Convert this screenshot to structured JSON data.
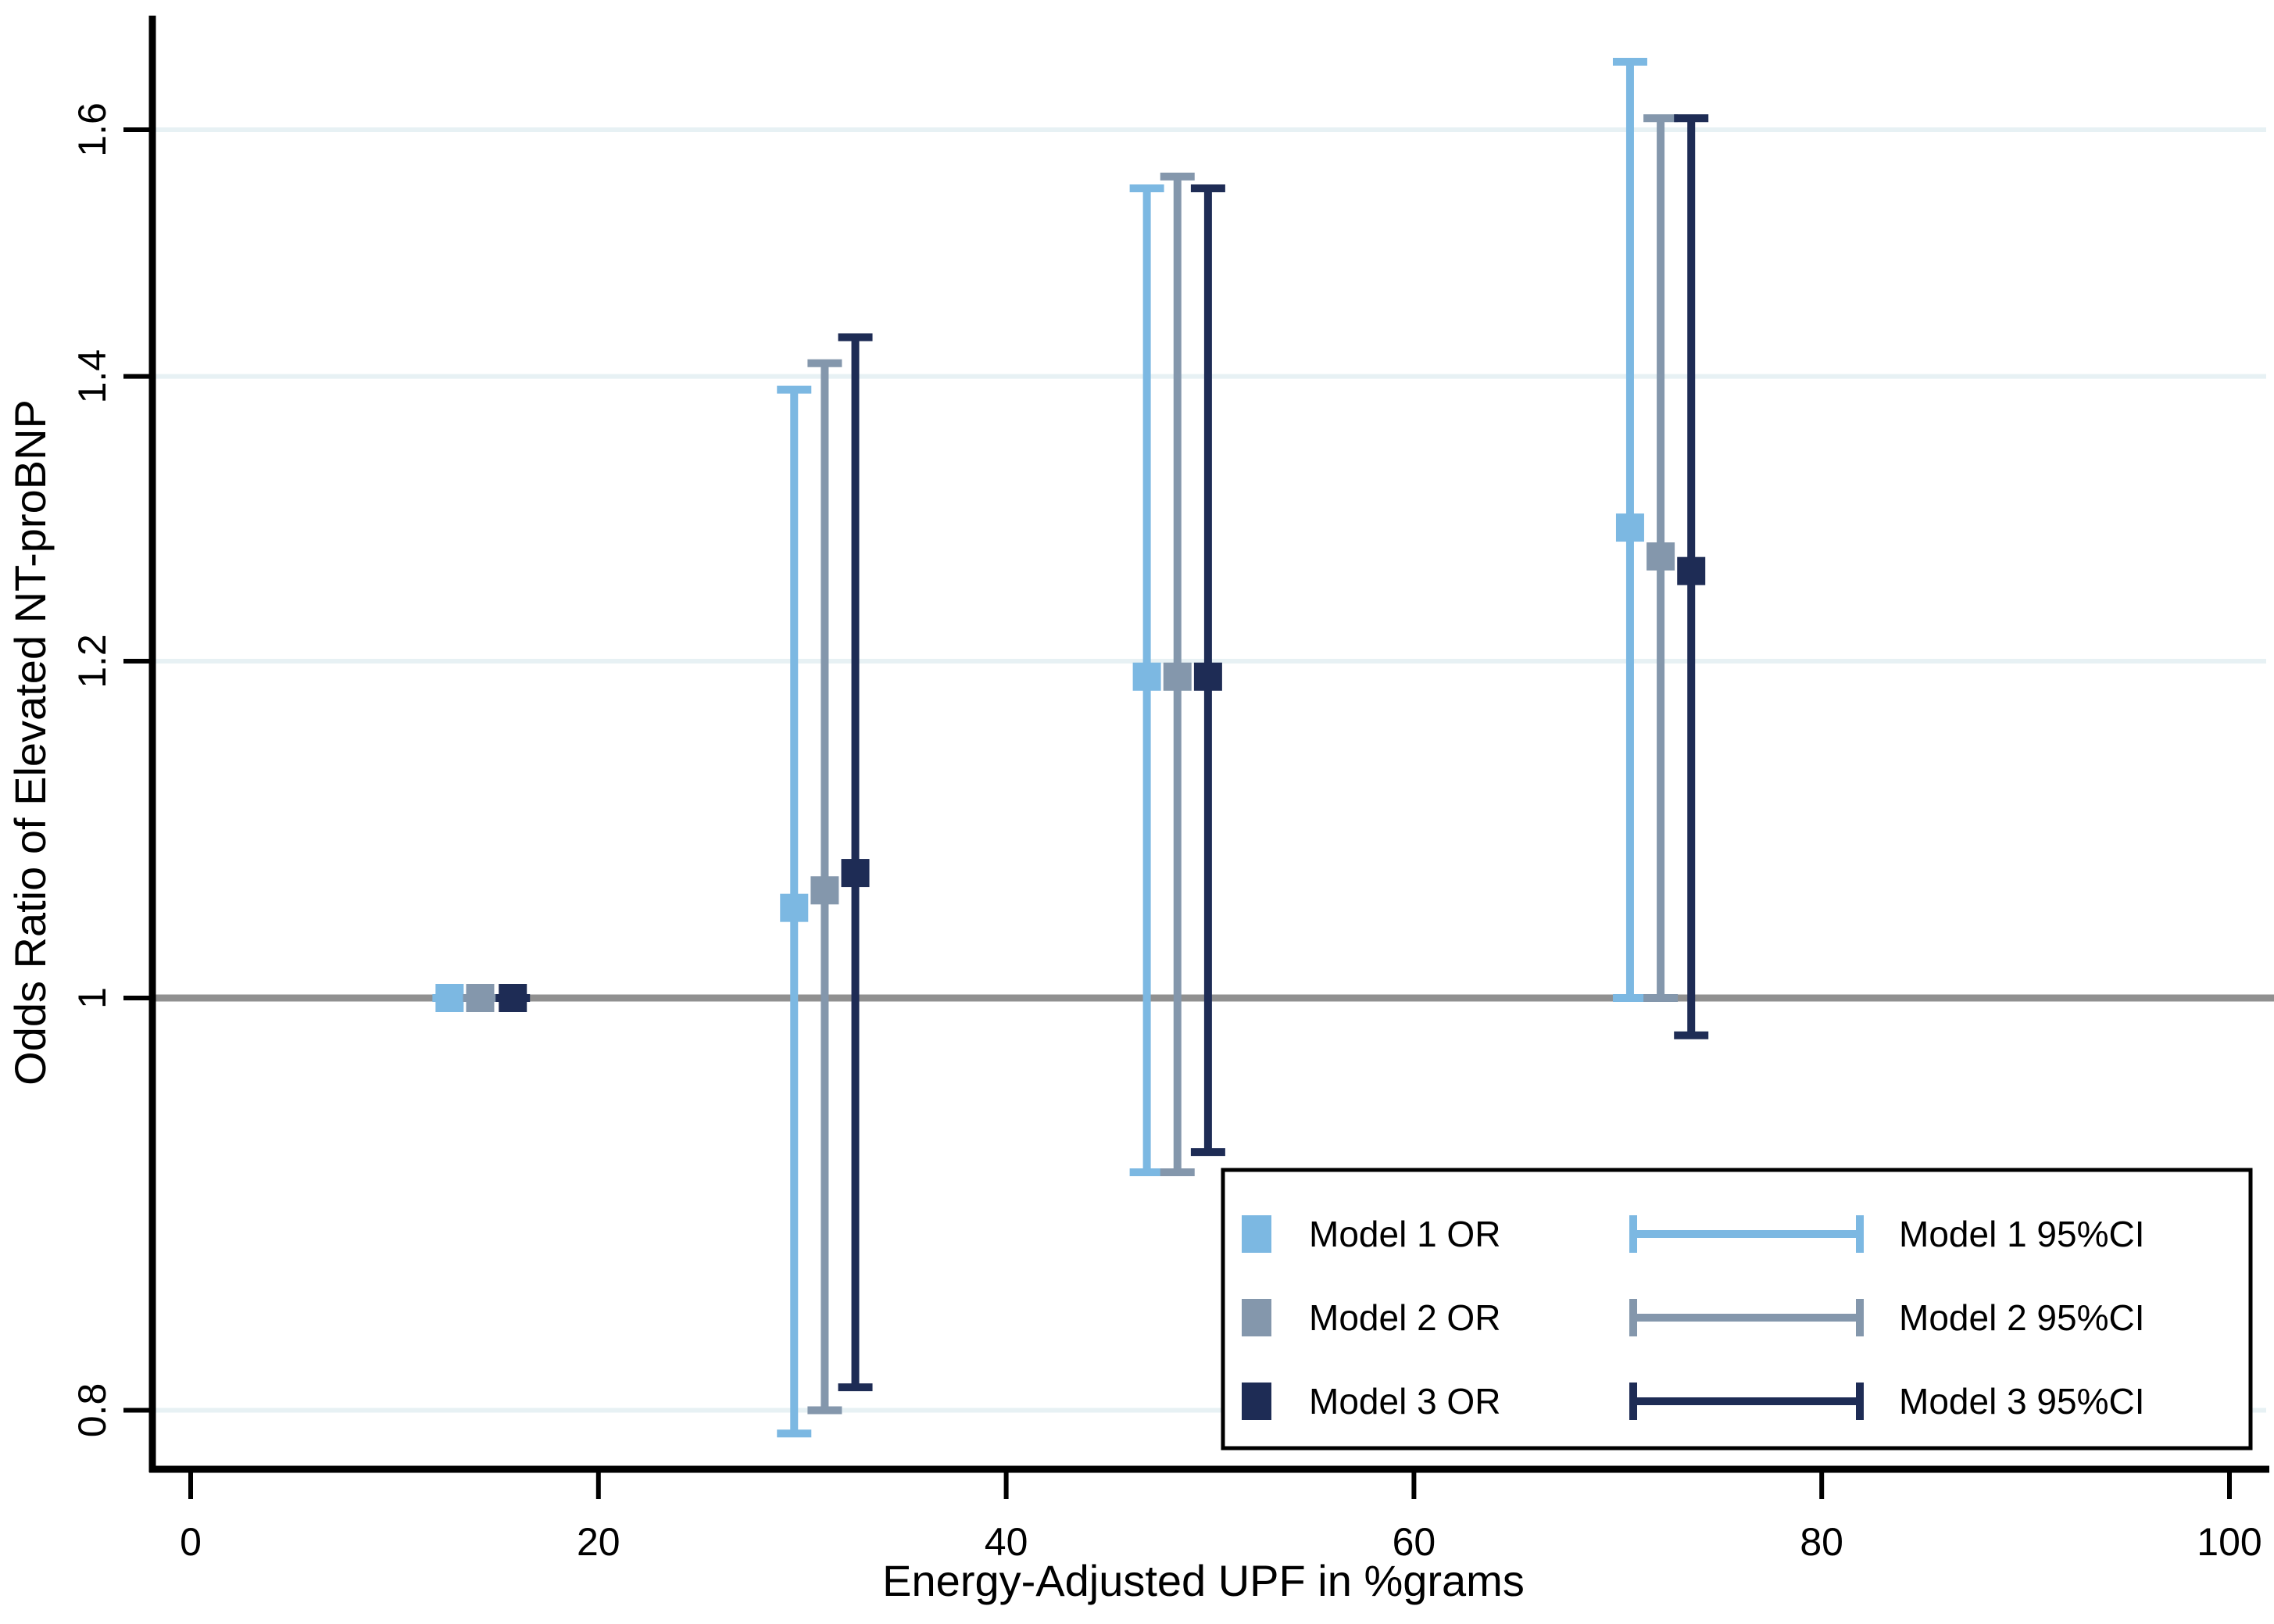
{
  "chart_data": {
    "type": "scatter",
    "subtype": "forest-errorbar",
    "title": "",
    "xlabel": "Energy-Adjusted UPF in %grams",
    "ylabel": "Odds Ratio of Elevated NT-proBNP",
    "x_ticks": [
      0,
      20,
      40,
      60,
      80,
      100
    ],
    "x_tick_labels": [
      "0",
      "20",
      "40",
      "60",
      "80",
      "100"
    ],
    "y_ticks": [
      0.8,
      1,
      1.2,
      1.4,
      1.6
    ],
    "y_tick_labels": [
      "0.8",
      "1",
      "1.2",
      "1.4",
      "1.6"
    ],
    "y_scale": "log",
    "xlim": [
      -1.9,
      102.0
    ],
    "ylim": [
      0.775,
      1.7
    ],
    "reference_line_y": 1,
    "grid": "horizontal-light",
    "gridline_ticks": [
      0.8,
      1.2,
      1.4,
      1.6
    ],
    "legend_position": "bottom-right",
    "series": [
      {
        "name": "Model 1",
        "or_label": "Model 1 OR",
        "ci_label": "Model 1 95%CI",
        "color": "#7CB8E2",
        "points": [
          {
            "x": 12.7,
            "or": 1.0,
            "lo": 1.0,
            "hi": 1.0
          },
          {
            "x": 29.6,
            "or": 1.05,
            "lo": 0.79,
            "hi": 1.39
          },
          {
            "x": 46.9,
            "or": 1.19,
            "lo": 0.91,
            "hi": 1.55
          },
          {
            "x": 70.6,
            "or": 1.29,
            "lo": 1.0,
            "hi": 1.66
          }
        ]
      },
      {
        "name": "Model 2",
        "or_label": "Model 2 OR",
        "ci_label": "Model 2 95%CI",
        "color": "#8497AC",
        "points": [
          {
            "x": 14.2,
            "or": 1.0,
            "lo": 1.0,
            "hi": 1.0
          },
          {
            "x": 31.1,
            "or": 1.06,
            "lo": 0.8,
            "hi": 1.41
          },
          {
            "x": 48.4,
            "or": 1.19,
            "lo": 0.91,
            "hi": 1.56
          },
          {
            "x": 72.1,
            "or": 1.27,
            "lo": 1.0,
            "hi": 1.61
          }
        ]
      },
      {
        "name": "Model 3",
        "or_label": "Model 3 OR",
        "ci_label": "Model 3 95%CI",
        "color": "#1E2C55",
        "points": [
          {
            "x": 15.8,
            "or": 1.0,
            "lo": 1.0,
            "hi": 1.0
          },
          {
            "x": 32.6,
            "or": 1.07,
            "lo": 0.81,
            "hi": 1.43
          },
          {
            "x": 49.9,
            "or": 1.19,
            "lo": 0.92,
            "hi": 1.55
          },
          {
            "x": 73.6,
            "or": 1.26,
            "lo": 0.98,
            "hi": 1.61
          }
        ]
      }
    ],
    "colors": {
      "background": "#FFFFFF",
      "axis": "#000000",
      "gridline": "#E7F1F4",
      "reference_line": "#909090",
      "legend_border": "#000000",
      "legend_background": "#FFFFFF"
    }
  }
}
